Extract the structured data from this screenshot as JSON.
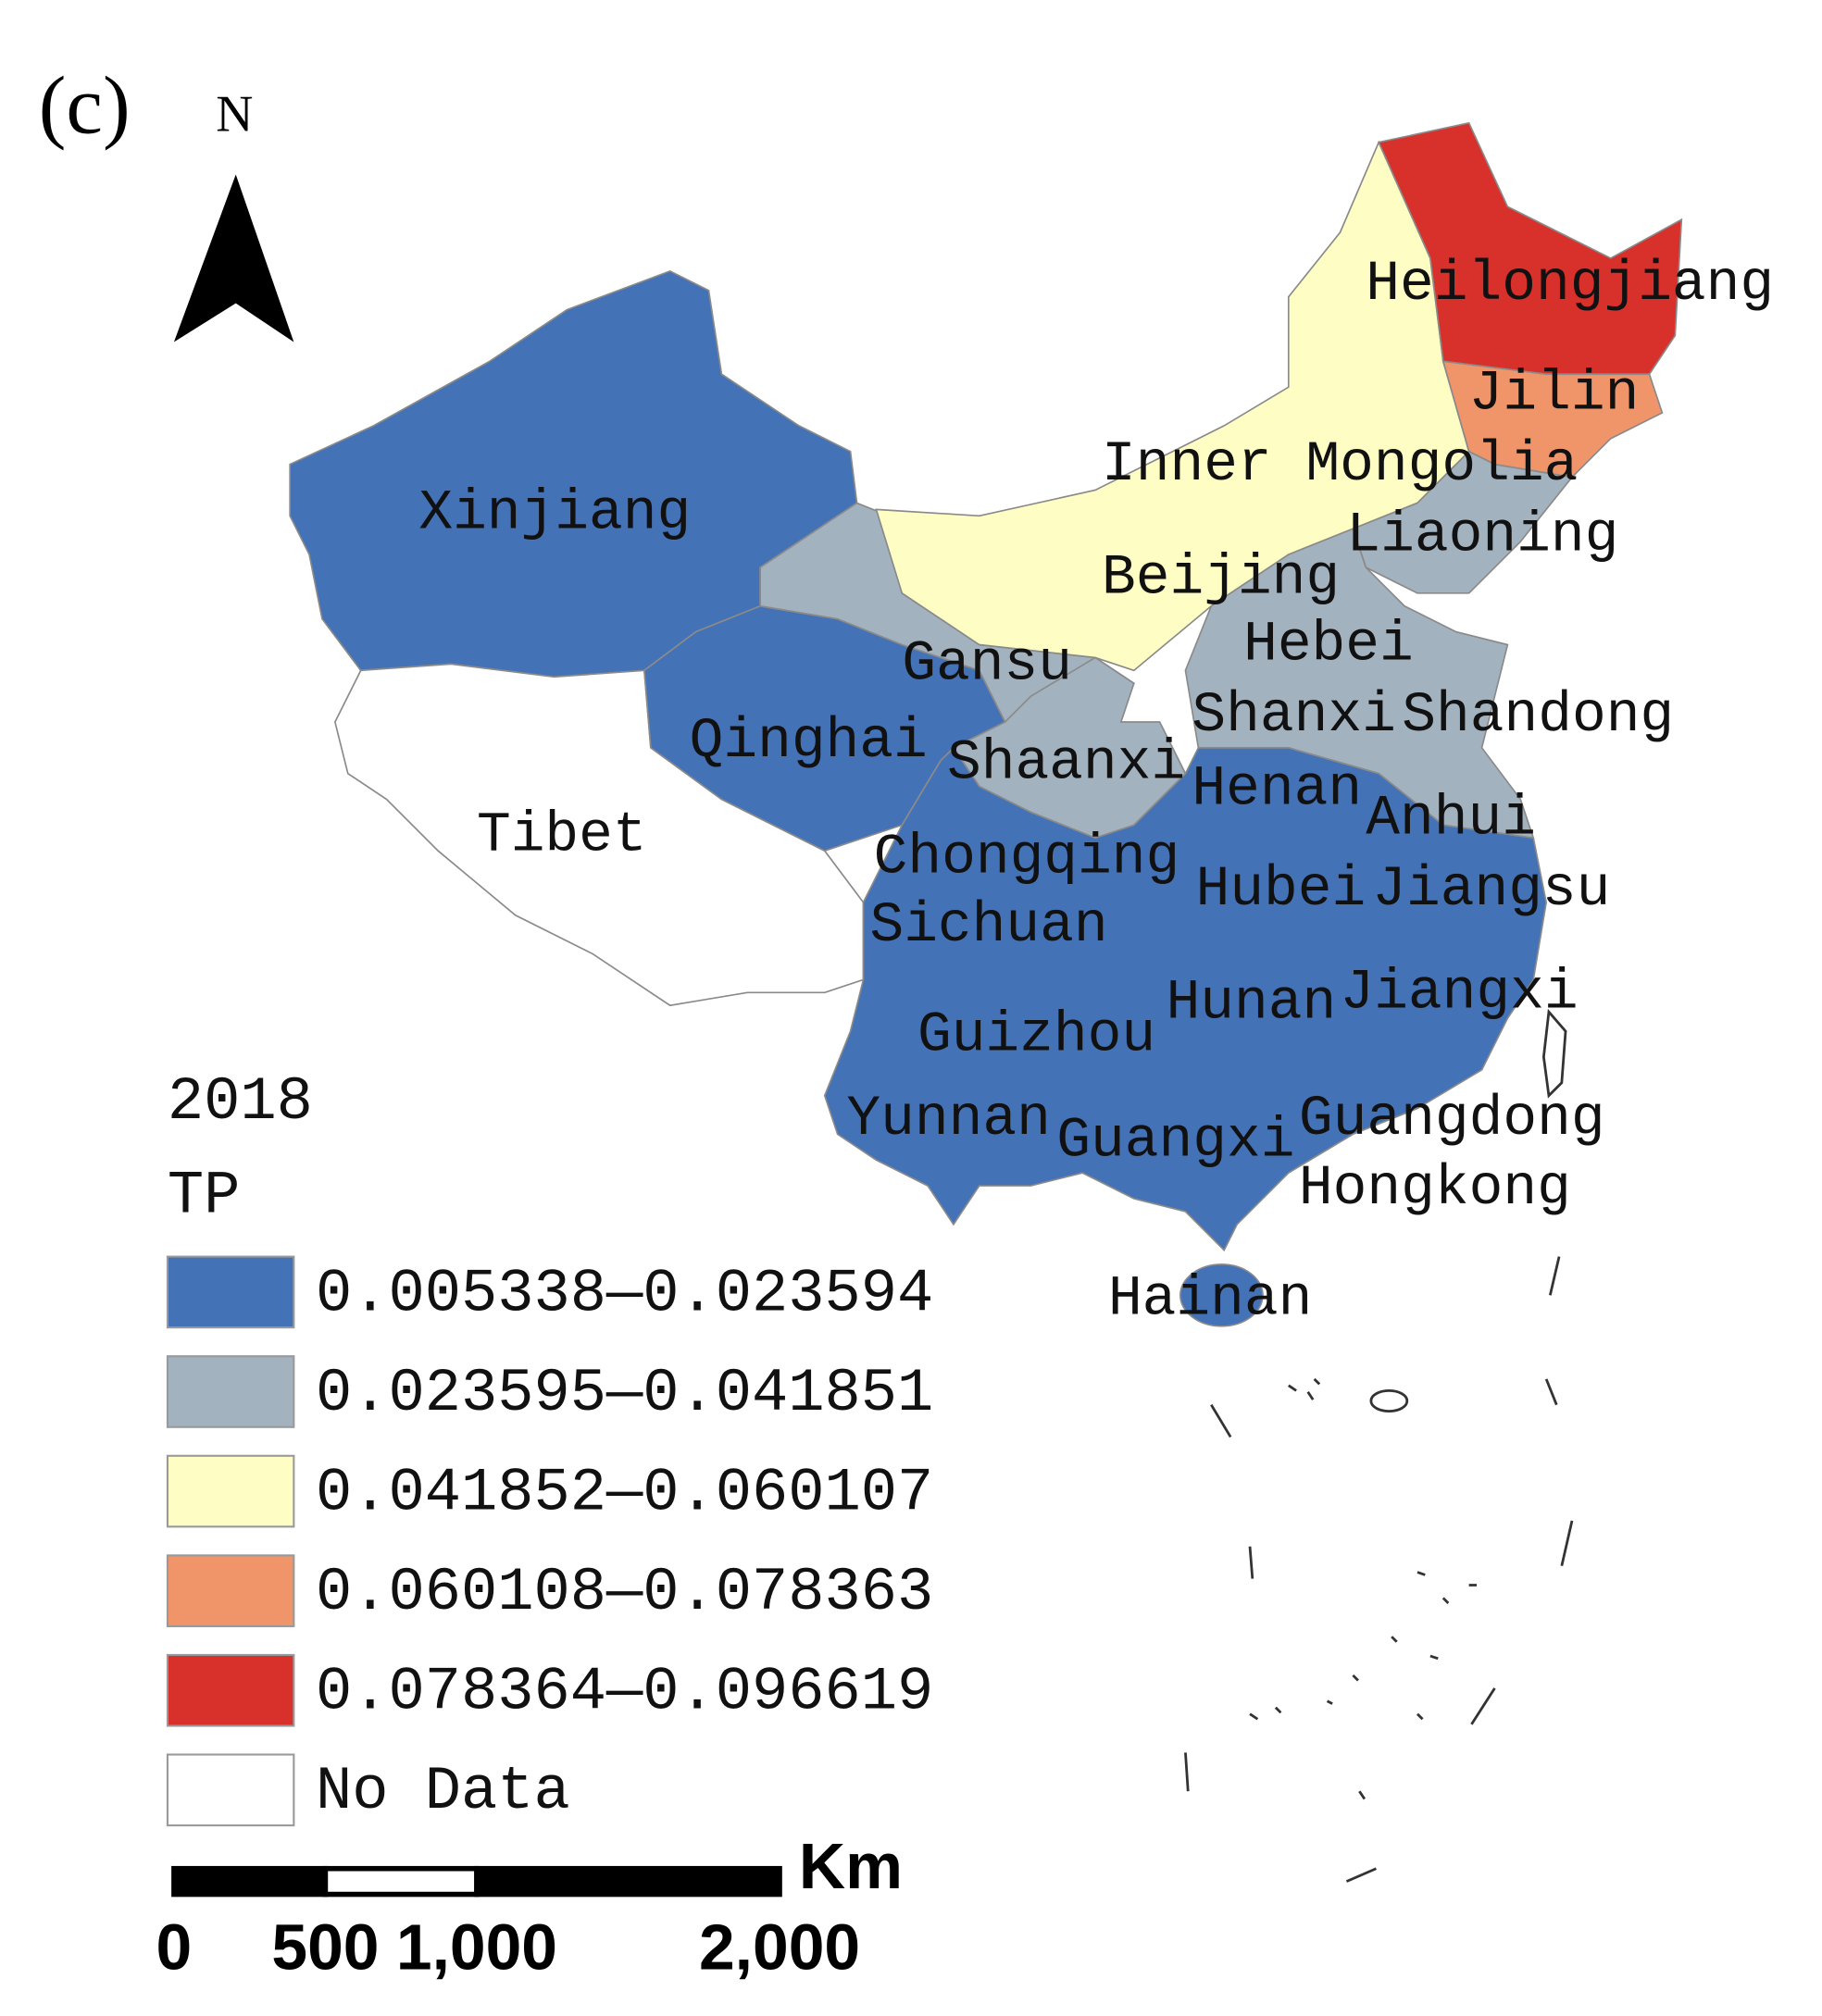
{
  "panel_label": "(c)",
  "north_label": "N",
  "regions": [
    "Heilongjiang",
    "Jilin",
    "Inner Mongolia",
    "Liaoning",
    "Beijing",
    "Xinjiang",
    "Hebei",
    "Gansu",
    "Shanxi",
    "Shandong",
    "Qinghai",
    "Shaanxi",
    "Henan",
    "Anhui",
    "Tibet",
    "Chongqing",
    "Hubei",
    "Jiangsu",
    "Sichuan",
    "Hunan",
    "Jiangxi",
    "Guizhou",
    "Yunnan",
    "Guangxi",
    "Guangdong",
    "Hongkong",
    "Hainan"
  ],
  "legend": {
    "title": "2018",
    "subtitle": "TP",
    "items": [
      {
        "label": "0.005338—0.023594",
        "color": "#4472b6"
      },
      {
        "label": "0.023595—0.041851",
        "color": "#a2b2bf"
      },
      {
        "label": "0.041852—0.060107",
        "color": "#fefdc4"
      },
      {
        "label": "0.060108—0.078363",
        "color": "#f0956a"
      },
      {
        "label": "0.078364—0.096619",
        "color": "#d8302a"
      },
      {
        "label": "No Data",
        "color": "#ffffff"
      }
    ]
  },
  "scale_bar": {
    "unit": "Km",
    "ticks": [
      0,
      500,
      {
        "value": 1000,
        "label": "1,000"
      },
      {
        "value": 2000,
        "label": "2,000"
      }
    ]
  }
}
